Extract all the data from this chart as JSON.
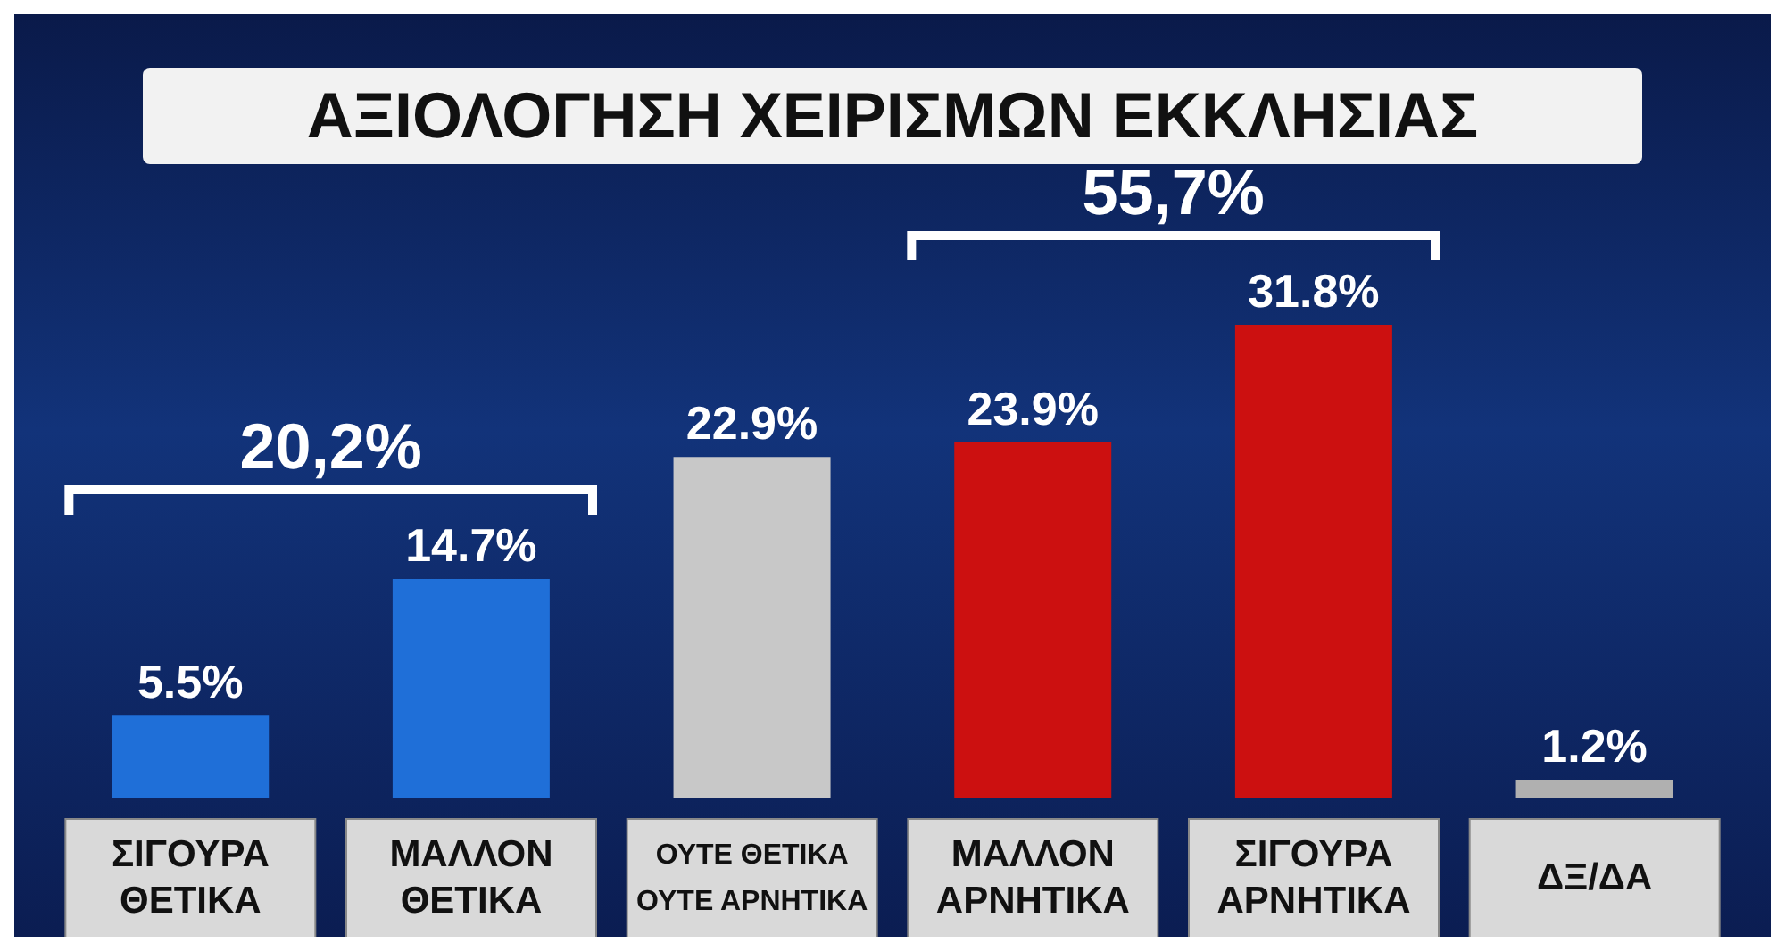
{
  "chart_data": {
    "type": "bar",
    "title": "ΑΞΙΟΛΟΓΗΣΗ ΧΕΙΡΙΣΜΩΝ ΕΚΚΛΗΣΙΑΣ",
    "categories": [
      "ΣΙΓΟΥΡΑ ΘΕΤΙΚΑ",
      "ΜΑΛΛΟΝ ΘΕΤΙΚΑ",
      "ΟΥΤΕ ΘΕΤΙΚΑ ΟΥΤΕ ΑΡΝΗΤΙΚΑ",
      "ΜΑΛΛΟΝ ΑΡΝΗΤΙΚΑ",
      "ΣΙΓΟΥΡΑ ΑΡΝΗΤΙΚΑ",
      "ΔΞ/ΔΑ"
    ],
    "values": [
      5.5,
      14.7,
      22.9,
      23.9,
      31.8,
      1.2
    ],
    "value_labels": [
      "5.5%",
      "14.7%",
      "22.9%",
      "23.9%",
      "31.8%",
      "1.2%"
    ],
    "colors": [
      "#1f6fd8",
      "#1f6fd8",
      "#c8c8c8",
      "#cc1010",
      "#cc1010",
      "#b0b0b0"
    ],
    "annotations": [
      "20,2%",
      "55,7%"
    ]
  }
}
